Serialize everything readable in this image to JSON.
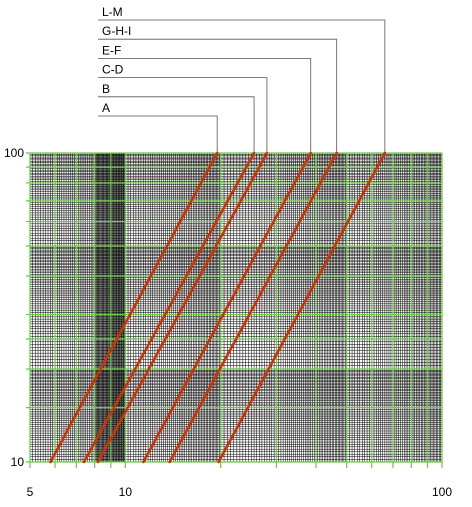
{
  "chart_data": {
    "type": "line",
    "title": "",
    "xlabel": "",
    "ylabel": "",
    "x_scale": "log",
    "y_scale": "log",
    "xlim": [
      5,
      100
    ],
    "ylim": [
      10,
      100
    ],
    "x_tick_labels": [
      {
        "value": 5,
        "label": "5"
      },
      {
        "value": 10,
        "label": "10"
      },
      {
        "value": 100,
        "label": "100"
      }
    ],
    "y_tick_labels": [
      {
        "value": 10,
        "label": "10"
      },
      {
        "value": 100,
        "label": "100"
      }
    ],
    "grid": true,
    "line_color": "#cc3300",
    "grid_major_color": "#66cc44",
    "grid_minor_color": "#000000",
    "series": [
      {
        "name": "A",
        "x": [
          5.8,
          19.5
        ],
        "y": [
          10,
          100
        ]
      },
      {
        "name": "B",
        "x": [
          7.4,
          25.5
        ],
        "y": [
          10,
          100
        ]
      },
      {
        "name": "C-D",
        "x": [
          8.2,
          28.0
        ],
        "y": [
          10,
          100
        ]
      },
      {
        "name": "E-F",
        "x": [
          11.4,
          38.5
        ],
        "y": [
          10,
          100
        ]
      },
      {
        "name": "G-H-I",
        "x": [
          13.8,
          46.5
        ],
        "y": [
          10,
          100
        ]
      },
      {
        "name": "L-M",
        "x": [
          19.7,
          66.0
        ],
        "y": [
          10,
          100
        ]
      }
    ]
  }
}
